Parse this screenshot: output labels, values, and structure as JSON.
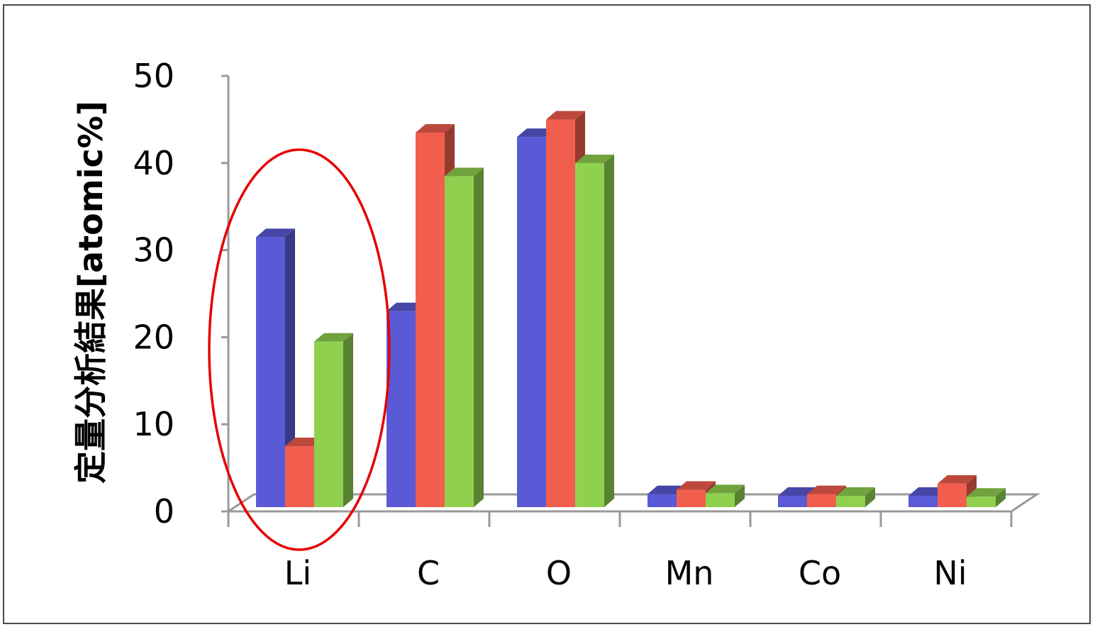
{
  "chart_data": {
    "type": "bar",
    "style": "3d-clustered-column",
    "title": "",
    "xlabel": "",
    "ylabel": "定量分析結果[atomic%]",
    "ylim": [
      0,
      50
    ],
    "yticks": [
      "0",
      "10",
      "20",
      "30",
      "40",
      "50"
    ],
    "categories": [
      "Li",
      "C",
      "O",
      "Mn",
      "Co",
      "Ni"
    ],
    "series": [
      {
        "color": "#5a5ad6",
        "values": [
          31,
          22.5,
          42.5,
          1.5,
          1.3,
          1.3
        ]
      },
      {
        "color": "#f25e4e",
        "values": [
          7,
          43,
          44.5,
          2.0,
          1.5,
          2.7
        ]
      },
      {
        "color": "#8fd14f",
        "values": [
          19,
          38,
          39.5,
          1.6,
          1.3,
          1.2
        ]
      }
    ],
    "legend": "none",
    "grid": false,
    "highlight": {
      "category": "Li",
      "shape": "ellipse",
      "color": "#e60000"
    }
  }
}
